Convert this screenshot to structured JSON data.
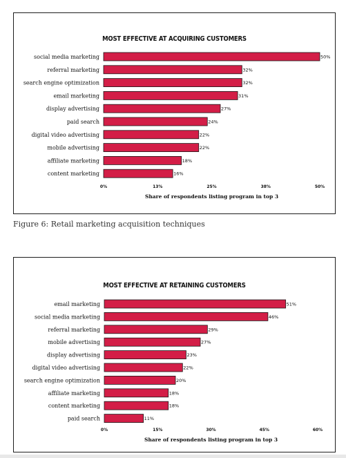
{
  "caption": "Figure 6: Retail marketing acquisition techniques",
  "colors": {
    "bar": "#d31e47",
    "bar_stroke": "#1a1a1a"
  },
  "chart_data": [
    {
      "type": "bar",
      "orientation": "horizontal",
      "title": "MOST EFFECTIVE AT ACQUIRING CUSTOMERS",
      "xlabel": "Share of respondents listing program in top 3",
      "categories": [
        "social media marketing",
        "referral marketing",
        "search engine optimization",
        "email marketing",
        "display advertising",
        "paid search",
        "digital video advertising",
        "mobile advertising",
        "affiliate marketing",
        "content marketing"
      ],
      "values": [
        50,
        32,
        32,
        31,
        27,
        24,
        22,
        22,
        18,
        16
      ],
      "value_labels": [
        "50%",
        "32%",
        "32%",
        "31%",
        "27%",
        "24%",
        "22%",
        "22%",
        "18%",
        "16%"
      ],
      "xlim": [
        0,
        50
      ],
      "ticks": [
        0,
        12.5,
        25,
        37.5,
        50
      ],
      "tick_labels": [
        "0%",
        "13%",
        "25%",
        "38%",
        "50%"
      ],
      "grid": false
    },
    {
      "type": "bar",
      "orientation": "horizontal",
      "title": "MOST EFFECTIVE AT RETAINING CUSTOMERS",
      "xlabel": "Share of respondents listing program in top 3",
      "categories": [
        "email marketing",
        "social media marketing",
        "referral marketing",
        "mobile advertising",
        "display advertising",
        "digital video advertising",
        "search engine optimization",
        "affiliate marketing",
        "content marketing",
        "paid search"
      ],
      "values": [
        51,
        46,
        29,
        27,
        23,
        22,
        20,
        18,
        18,
        11
      ],
      "value_labels": [
        "51%",
        "46%",
        "29%",
        "27%",
        "23%",
        "22%",
        "20%",
        "18%",
        "18%",
        "11%"
      ],
      "xlim": [
        0,
        60
      ],
      "ticks": [
        0,
        15,
        30,
        45,
        60
      ],
      "tick_labels": [
        "0%",
        "15%",
        "30%",
        "45%",
        "60%"
      ],
      "grid": false
    }
  ]
}
